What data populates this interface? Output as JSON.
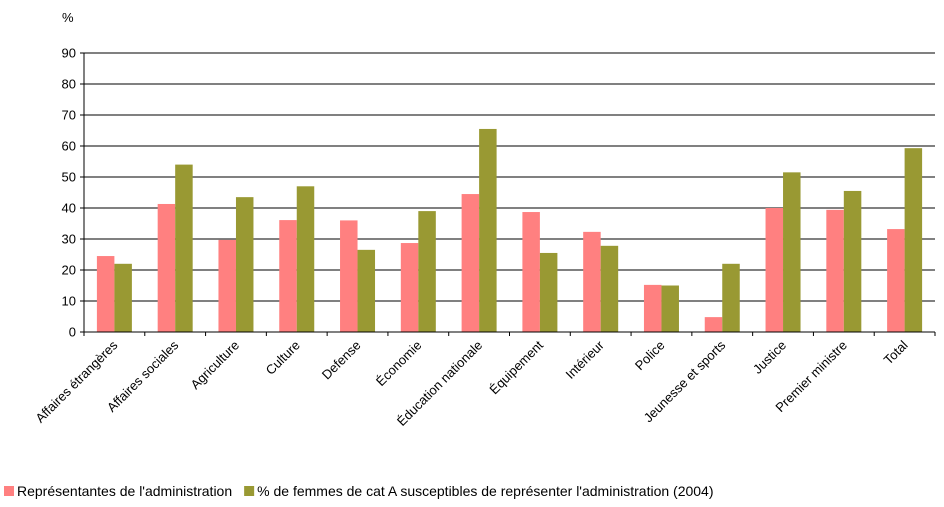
{
  "chart_data": {
    "type": "bar",
    "y_label": "%",
    "categories": [
      "Affaires étrangères",
      "Affaires sociales",
      "Agriculture",
      "Culture",
      "Defense",
      "Économie",
      "Éducation nationale",
      "Équipement",
      "Intérieur",
      "Police",
      "Jeunesse et sports",
      "Justice",
      "Premier ministre",
      "Total"
    ],
    "series": [
      {
        "name": "Représentantes de l'administration",
        "color": "#ff8080",
        "values": [
          24.5,
          41.3,
          29.7,
          36.1,
          36,
          28.7,
          44.5,
          38.7,
          32.3,
          15.2,
          4.8,
          40,
          39.4,
          33.2
        ]
      },
      {
        "name": "% de femmes de cat A susceptibles de représenter l'administration (2004)",
        "color": "#999933",
        "values": [
          22,
          54,
          43.5,
          47,
          26.5,
          39,
          65.5,
          25.5,
          27.8,
          15,
          22,
          51.5,
          45.5,
          59.3
        ]
      }
    ],
    "ylim": [
      0,
      90
    ],
    "yticks": [
      0,
      10,
      20,
      30,
      40,
      50,
      60,
      70,
      80,
      90
    ],
    "grid": true,
    "legend": "bottom"
  }
}
